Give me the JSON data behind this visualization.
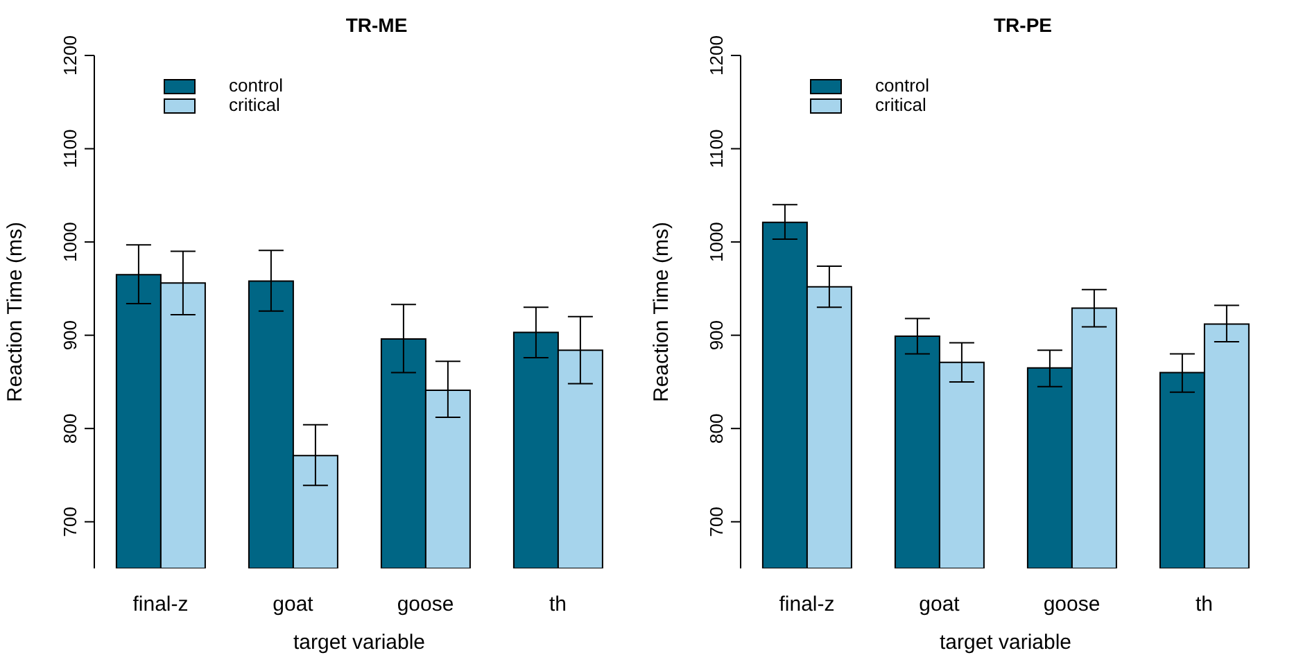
{
  "chart_data": [
    {
      "type": "bar",
      "title": "TR-ME",
      "xlabel": "target variable",
      "ylabel": "Reaction Time (ms)",
      "categories": [
        "final-z",
        "goat",
        "goose",
        "th"
      ],
      "series": [
        {
          "name": "control",
          "color": "#006685",
          "values": [
            965,
            958,
            896,
            903
          ],
          "errors": [
            [
              934,
              997
            ],
            [
              926,
              991
            ],
            [
              860,
              933
            ],
            [
              876,
              930
            ]
          ]
        },
        {
          "name": "critical",
          "color": "#a6d4ec",
          "values": [
            956,
            771,
            841,
            884
          ],
          "errors": [
            [
              922,
              990
            ],
            [
              739,
              804
            ],
            [
              812,
              872
            ],
            [
              848,
              920
            ]
          ]
        }
      ],
      "ylim": [
        650,
        1200
      ],
      "yticks": [
        700,
        800,
        900,
        1000,
        1100,
        1200
      ],
      "legend": "top left"
    },
    {
      "type": "bar",
      "title": "TR-PE",
      "xlabel": "target variable",
      "ylabel": "Reaction Time (ms)",
      "categories": [
        "final-z",
        "goat",
        "goose",
        "th"
      ],
      "series": [
        {
          "name": "control",
          "color": "#006685",
          "values": [
            1021,
            899,
            865,
            860
          ],
          "errors": [
            [
              1003,
              1040
            ],
            [
              880,
              918
            ],
            [
              845,
              884
            ],
            [
              839,
              880
            ]
          ]
        },
        {
          "name": "critical",
          "color": "#a6d4ec",
          "values": [
            952,
            871,
            929,
            912
          ],
          "errors": [
            [
              930,
              974
            ],
            [
              850,
              892
            ],
            [
              909,
              949
            ],
            [
              893,
              932
            ]
          ]
        }
      ],
      "ylim": [
        650,
        1200
      ],
      "yticks": [
        700,
        800,
        900,
        1000,
        1100,
        1200
      ],
      "legend": "top left"
    }
  ]
}
